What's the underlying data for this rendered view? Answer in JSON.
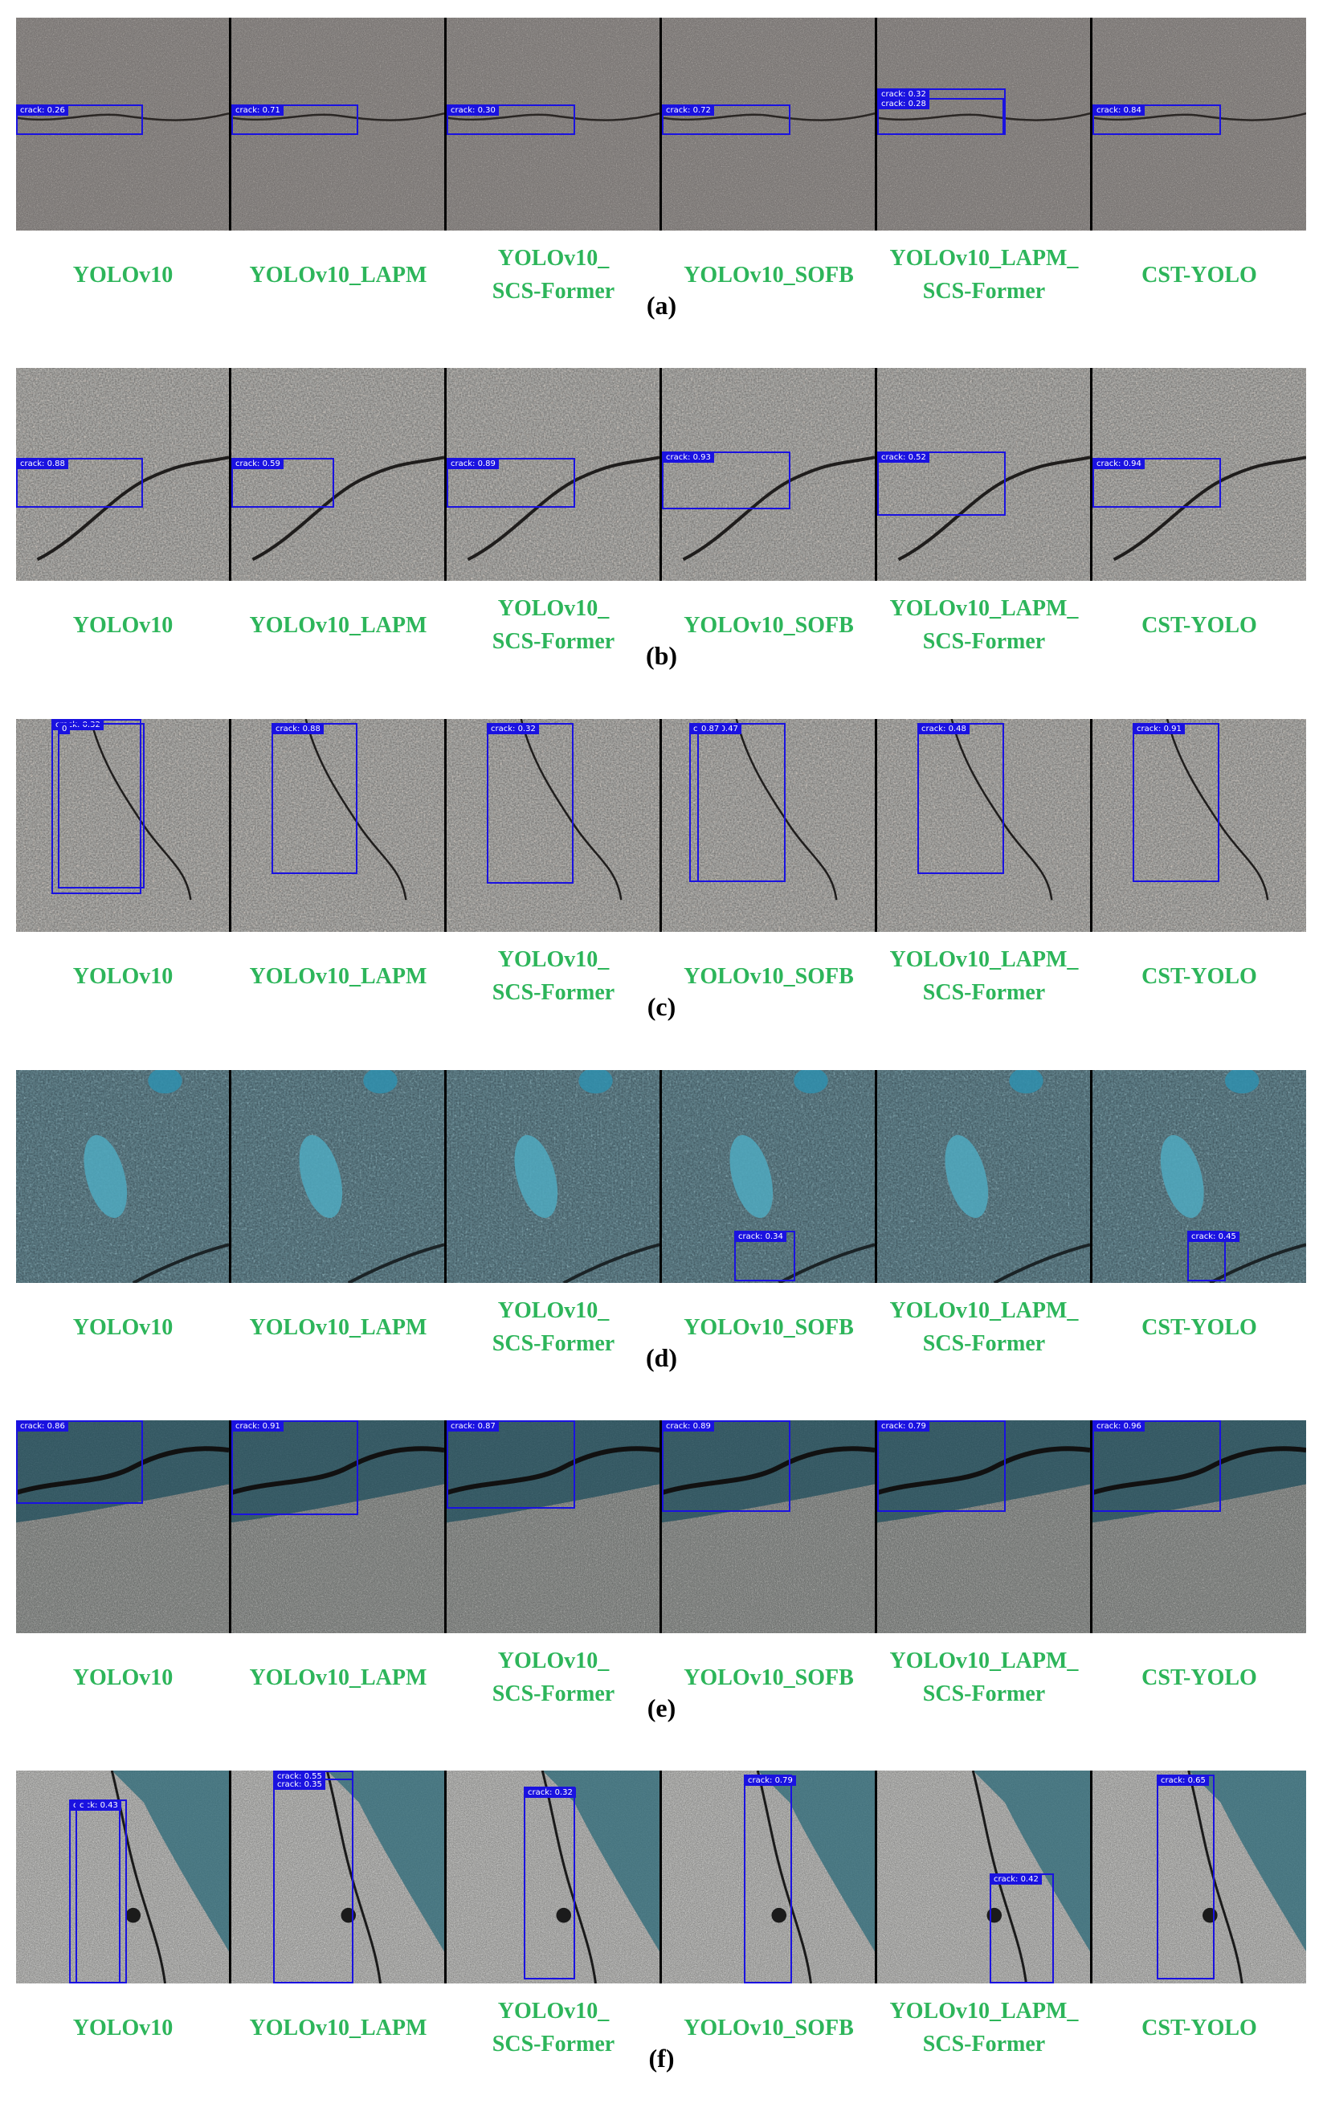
{
  "models": [
    [
      "YOLOv10"
    ],
    [
      "YOLOv10_LAPM"
    ],
    [
      "YOLOv10_",
      "SCS-Former"
    ],
    [
      "YOLOv10_SOFB"
    ],
    [
      "YOLOv10_LAPM_",
      "SCS-Former"
    ],
    [
      "CST-YOLO"
    ]
  ],
  "label_color": "#2db55a",
  "box_color": "#1a12e0",
  "detection_class": "crack",
  "rows": [
    {
      "caption": "(a)",
      "scene": "gray",
      "detections": [
        [
          "crack: 0.26"
        ],
        [
          "crack: 0.71"
        ],
        [
          "crack: 0.30"
        ],
        [
          "crack: 0.72"
        ],
        [
          "crack: 0.32",
          "crack: 0.28"
        ],
        [
          "crack: 0.84"
        ]
      ]
    },
    {
      "caption": "(b)",
      "scene": "pebble",
      "detections": [
        [
          "crack: 0.88"
        ],
        [
          "crack: 0.59"
        ],
        [
          "crack: 0.89"
        ],
        [
          "crack: 0.93"
        ],
        [
          "crack: 0.52"
        ],
        [
          "crack: 0.94"
        ]
      ]
    },
    {
      "caption": "(c)",
      "scene": "pebble",
      "detections": [
        [
          "crack: 0.32",
          "0"
        ],
        [
          "crack: 0.88"
        ],
        [
          "crack: 0.32"
        ],
        [
          "crack: 0.47",
          "0.87"
        ],
        [
          "crack: 0.48"
        ],
        [
          "crack: 0.91"
        ]
      ]
    },
    {
      "caption": "(d)",
      "scene": "blue",
      "detections": [
        [],
        [],
        [],
        [
          "crack: 0.34"
        ],
        [],
        [
          "crack: 0.45"
        ]
      ]
    },
    {
      "caption": "(e)",
      "scene": "shadow-top",
      "detections": [
        [
          "crack: 0.86"
        ],
        [
          "crack: 0.91"
        ],
        [
          "crack: 0.87"
        ],
        [
          "crack: 0.89"
        ],
        [
          "crack: 0.79"
        ],
        [
          "crack: 0.96"
        ]
      ]
    },
    {
      "caption": "(f)",
      "scene": "shadow-right",
      "detections": [
        [
          "crack: 0.43",
          "c"
        ],
        [
          "crack: 0.55",
          "crack: 0.35"
        ],
        [
          "crack: 0.32"
        ],
        [
          "crack: 0.79"
        ],
        [
          "crack: 0.42"
        ],
        [
          "crack: 0.65"
        ]
      ]
    }
  ]
}
